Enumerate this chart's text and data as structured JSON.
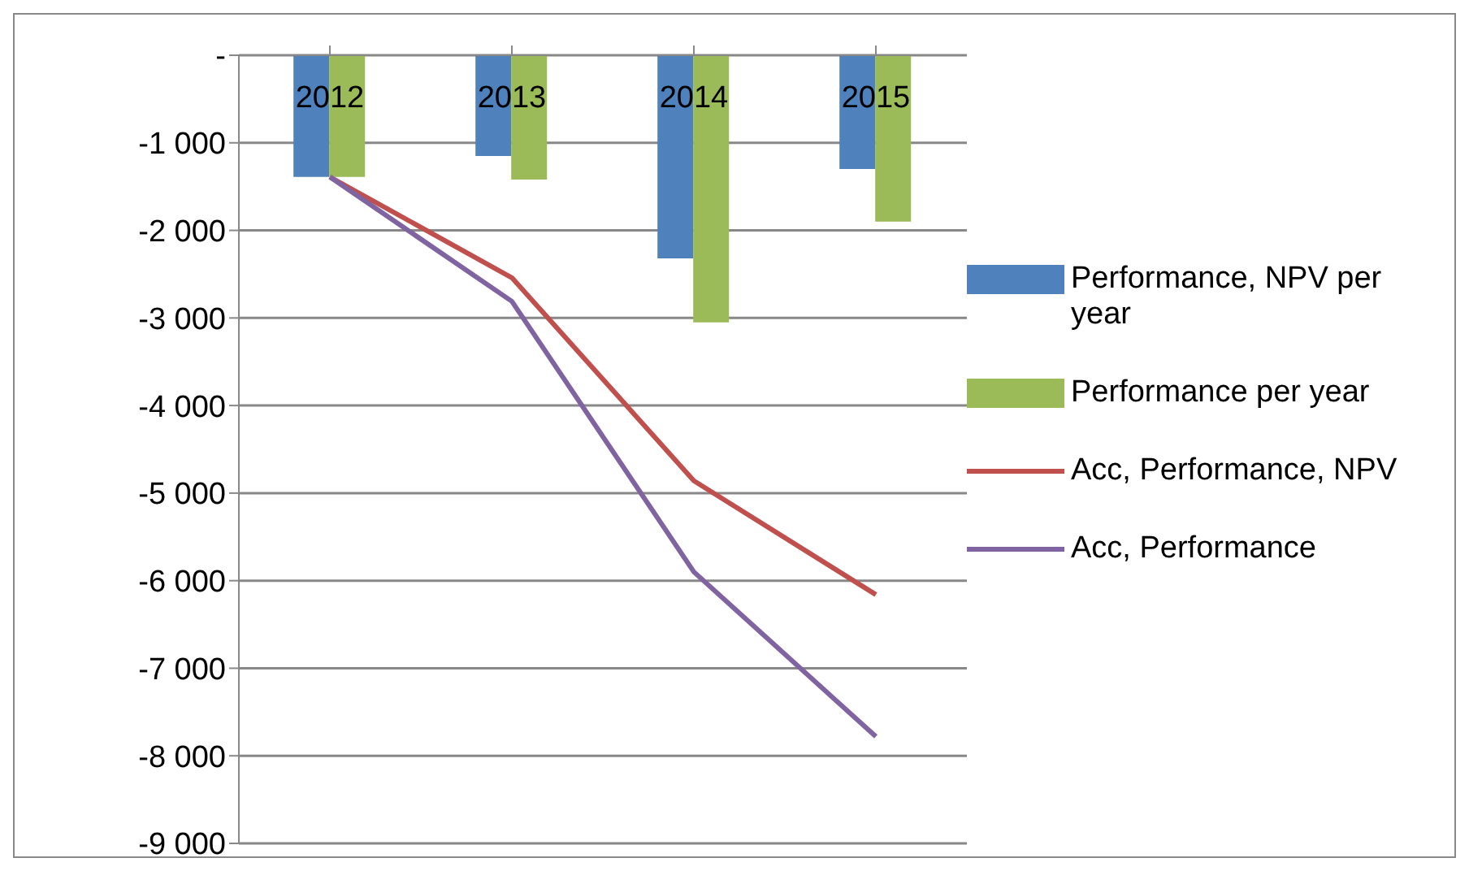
{
  "chart_data": {
    "type": "bar",
    "categories": [
      "2012",
      "2013",
      "2014",
      "2015"
    ],
    "series": [
      {
        "name": "Performance, NPV per year",
        "color": "#4f81bd",
        "values": [
          -1390,
          -1150,
          -2320,
          -1300
        ]
      },
      {
        "name": "Performance per year",
        "color": "#9bbb59",
        "values": [
          -1390,
          -1420,
          -3050,
          -1900
        ]
      },
      {
        "name": "Acc, Performance, NPV",
        "type": "line",
        "color": "#c0504d",
        "values": [
          -1390,
          -2540,
          -4860,
          -6160
        ]
      },
      {
        "name": "Acc, Performance",
        "type": "line",
        "color": "#8064a2",
        "values": [
          -1390,
          -2810,
          -5900,
          -7780
        ]
      }
    ],
    "ylim": [
      -9000,
      0
    ],
    "yticks": [
      {
        "value": 0,
        "label": "-"
      },
      {
        "value": -1000,
        "label": "-1 000"
      },
      {
        "value": -2000,
        "label": "-2 000"
      },
      {
        "value": -3000,
        "label": "-3 000"
      },
      {
        "value": -4000,
        "label": "-4 000"
      },
      {
        "value": -5000,
        "label": "-5 000"
      },
      {
        "value": -6000,
        "label": "-6 000"
      },
      {
        "value": -7000,
        "label": "-7 000"
      },
      {
        "value": -8000,
        "label": "-8 000"
      },
      {
        "value": -9000,
        "label": "-9 000"
      }
    ],
    "grid": "y",
    "legend": "right",
    "marker": "none",
    "line_style": "solid"
  }
}
